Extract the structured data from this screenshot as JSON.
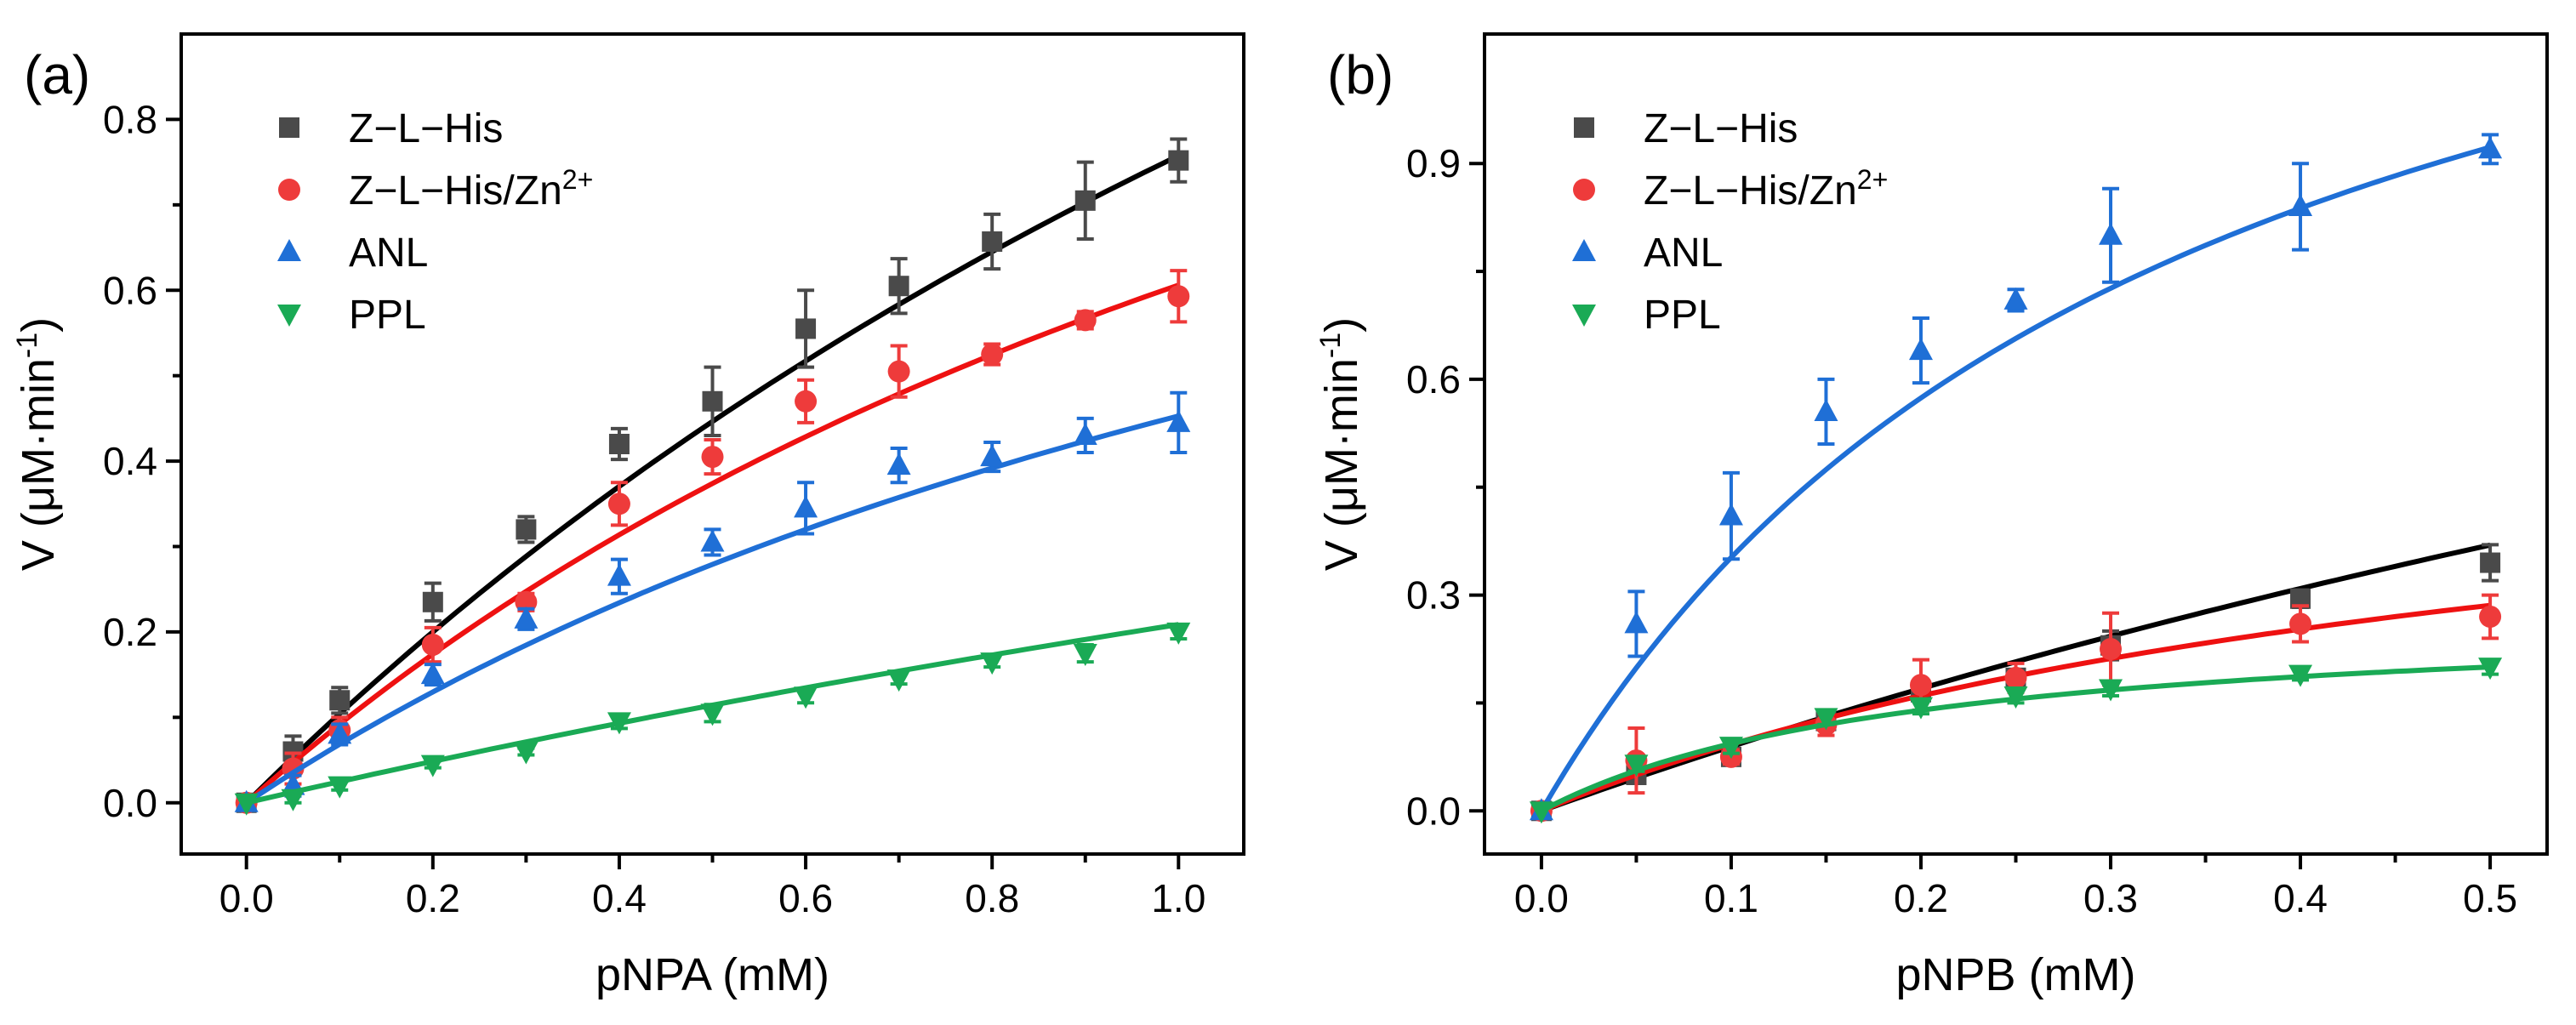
{
  "chart_data": [
    {
      "panel": "(a)",
      "type": "scatter",
      "xlabel": "pNPA (mM)",
      "ylabel_parts": [
        "V (μM·min",
        "-1",
        ")"
      ],
      "xlim": [
        -0.07,
        1.07
      ],
      "ylim": [
        -0.06,
        0.9
      ],
      "xticks": [
        0.0,
        0.2,
        0.4,
        0.6,
        0.8,
        1.0
      ],
      "xtick_labels": [
        "0.0",
        "0.2",
        "0.4",
        "0.6",
        "0.8",
        "1.0"
      ],
      "yticks": [
        0.0,
        0.2,
        0.4,
        0.6,
        0.8
      ],
      "ytick_labels": [
        "0.0",
        "0.2",
        "0.4",
        "0.6",
        "0.8"
      ],
      "legend_position": "top-left",
      "series": [
        {
          "name": "Z-L-His",
          "legend_parts": [
            "Z−L−His"
          ],
          "marker": "square",
          "color": "#4a4a4a",
          "line_color": "#000000",
          "x": [
            0,
            0.05,
            0.1,
            0.2,
            0.3,
            0.4,
            0.5,
            0.6,
            0.7,
            0.8,
            0.9,
            1.0
          ],
          "y": [
            0,
            0.06,
            0.12,
            0.235,
            0.32,
            0.42,
            0.47,
            0.555,
            0.605,
            0.657,
            0.705,
            0.752
          ],
          "err": [
            0,
            0.018,
            0.015,
            0.022,
            0.015,
            0.018,
            0.04,
            0.045,
            0.032,
            0.032,
            0.045,
            0.025
          ],
          "fit": {
            "vmax": 2.5,
            "km": 2.3
          }
        },
        {
          "name": "Z-L-His/Zn2+",
          "legend_parts": [
            "Z−L−His/Zn",
            "2+"
          ],
          "marker": "circle",
          "color": "#ee3b3b",
          "line_color": "#ee1111",
          "x": [
            0,
            0.05,
            0.1,
            0.2,
            0.3,
            0.4,
            0.5,
            0.6,
            0.7,
            0.8,
            0.9,
            1.0
          ],
          "y": [
            0,
            0.04,
            0.085,
            0.185,
            0.235,
            0.35,
            0.405,
            0.47,
            0.505,
            0.525,
            0.565,
            0.593
          ],
          "err": [
            0,
            0.018,
            0.015,
            0.02,
            0.01,
            0.025,
            0.02,
            0.025,
            0.03,
            0.012,
            0.01,
            0.03
          ],
          "fit": {
            "vmax": 1.6,
            "km": 1.64
          }
        },
        {
          "name": "ANL",
          "legend_parts": [
            "ANL"
          ],
          "marker": "triangle-up",
          "color": "#1f6fd6",
          "line_color": "#1f6fd6",
          "x": [
            0,
            0.05,
            0.1,
            0.2,
            0.3,
            0.4,
            0.5,
            0.6,
            0.7,
            0.8,
            0.9,
            1.0
          ],
          "y": [
            0,
            0.02,
            0.08,
            0.15,
            0.215,
            0.265,
            0.305,
            0.345,
            0.395,
            0.405,
            0.43,
            0.445
          ],
          "err": [
            0,
            0.012,
            0.012,
            0.012,
            0.012,
            0.02,
            0.015,
            0.03,
            0.02,
            0.017,
            0.02,
            0.035
          ],
          "fit": {
            "vmax": 1.2,
            "km": 1.65
          }
        },
        {
          "name": "PPL",
          "legend_parts": [
            "PPL"
          ],
          "marker": "triangle-down",
          "color": "#1aaa55",
          "line_color": "#1aaa55",
          "x": [
            0,
            0.05,
            0.1,
            0.2,
            0.3,
            0.4,
            0.5,
            0.6,
            0.7,
            0.8,
            0.9,
            1.0
          ],
          "y": [
            0,
            0.005,
            0.02,
            0.045,
            0.06,
            0.095,
            0.105,
            0.125,
            0.145,
            0.165,
            0.175,
            0.2
          ],
          "err": [
            0,
            0.005,
            0.005,
            0.004,
            0.004,
            0.008,
            0.01,
            0.008,
            0.006,
            0.006,
            0.01,
            0.008
          ],
          "fit": {
            "vmax": 1.2,
            "km": 4.75
          }
        }
      ]
    },
    {
      "panel": "(b)",
      "type": "scatter",
      "xlabel": "pNPB (mM)",
      "ylabel_parts": [
        "V (μM·min",
        "-1",
        ")"
      ],
      "xlim": [
        -0.03,
        0.53
      ],
      "ylim": [
        -0.06,
        1.08
      ],
      "xticks": [
        0.0,
        0.1,
        0.2,
        0.3,
        0.4,
        0.5
      ],
      "xtick_labels": [
        "0.0",
        "0.1",
        "0.2",
        "0.3",
        "0.4",
        "0.5"
      ],
      "yticks": [
        0.0,
        0.3,
        0.6,
        0.9
      ],
      "ytick_labels": [
        "0.0",
        "0.3",
        "0.6",
        "0.9"
      ],
      "legend_position": "top-left",
      "series": [
        {
          "name": "Z-L-His",
          "legend_parts": [
            "Z−L−His"
          ],
          "marker": "square",
          "color": "#4a4a4a",
          "line_color": "#000000",
          "x": [
            0,
            0.05,
            0.1,
            0.15,
            0.2,
            0.25,
            0.3,
            0.4,
            0.5
          ],
          "y": [
            0,
            0.05,
            0.075,
            0.125,
            0.165,
            0.185,
            0.23,
            0.295,
            0.345
          ],
          "err": [
            0,
            0.01,
            0.01,
            0.01,
            0.012,
            0.01,
            0.02,
            0.012,
            0.025
          ],
          "fit": {
            "vmax": 1.7,
            "km": 1.8
          }
        },
        {
          "name": "Z-L-His/Zn2+",
          "legend_parts": [
            "Z−L−His/Zn",
            "2+"
          ],
          "marker": "circle",
          "color": "#ee3b3b",
          "line_color": "#ee1111",
          "x": [
            0,
            0.05,
            0.1,
            0.15,
            0.2,
            0.25,
            0.3,
            0.4,
            0.5
          ],
          "y": [
            0,
            0.07,
            0.075,
            0.12,
            0.175,
            0.185,
            0.225,
            0.26,
            0.27
          ],
          "err": [
            0,
            0.045,
            0.01,
            0.015,
            0.035,
            0.02,
            0.05,
            0.025,
            0.03
          ],
          "fit": {
            "vmax": 0.6,
            "km": 0.55
          }
        },
        {
          "name": "ANL",
          "legend_parts": [
            "ANL"
          ],
          "marker": "triangle-up",
          "color": "#1f6fd6",
          "line_color": "#1f6fd6",
          "x": [
            0,
            0.05,
            0.1,
            0.15,
            0.2,
            0.25,
            0.3,
            0.4,
            0.5
          ],
          "y": [
            0,
            0.26,
            0.41,
            0.555,
            0.64,
            0.71,
            0.8,
            0.84,
            0.92
          ],
          "err": [
            0,
            0.045,
            0.06,
            0.045,
            0.045,
            0.015,
            0.065,
            0.06,
            0.02
          ],
          "fit": {
            "vmax": 1.55,
            "km": 0.34
          }
        },
        {
          "name": "PPL",
          "legend_parts": [
            "PPL"
          ],
          "marker": "triangle-down",
          "color": "#1aaa55",
          "line_color": "#1aaa55",
          "x": [
            0,
            0.05,
            0.1,
            0.15,
            0.2,
            0.25,
            0.3,
            0.4,
            0.5
          ],
          "y": [
            0,
            0.065,
            0.09,
            0.13,
            0.145,
            0.16,
            0.17,
            0.19,
            0.2
          ],
          "err": [
            0,
            0.01,
            0.01,
            0.01,
            0.01,
            0.01,
            0.01,
            0.008,
            0.01
          ],
          "fit": {
            "vmax": 0.28,
            "km": 0.2
          }
        }
      ]
    }
  ]
}
